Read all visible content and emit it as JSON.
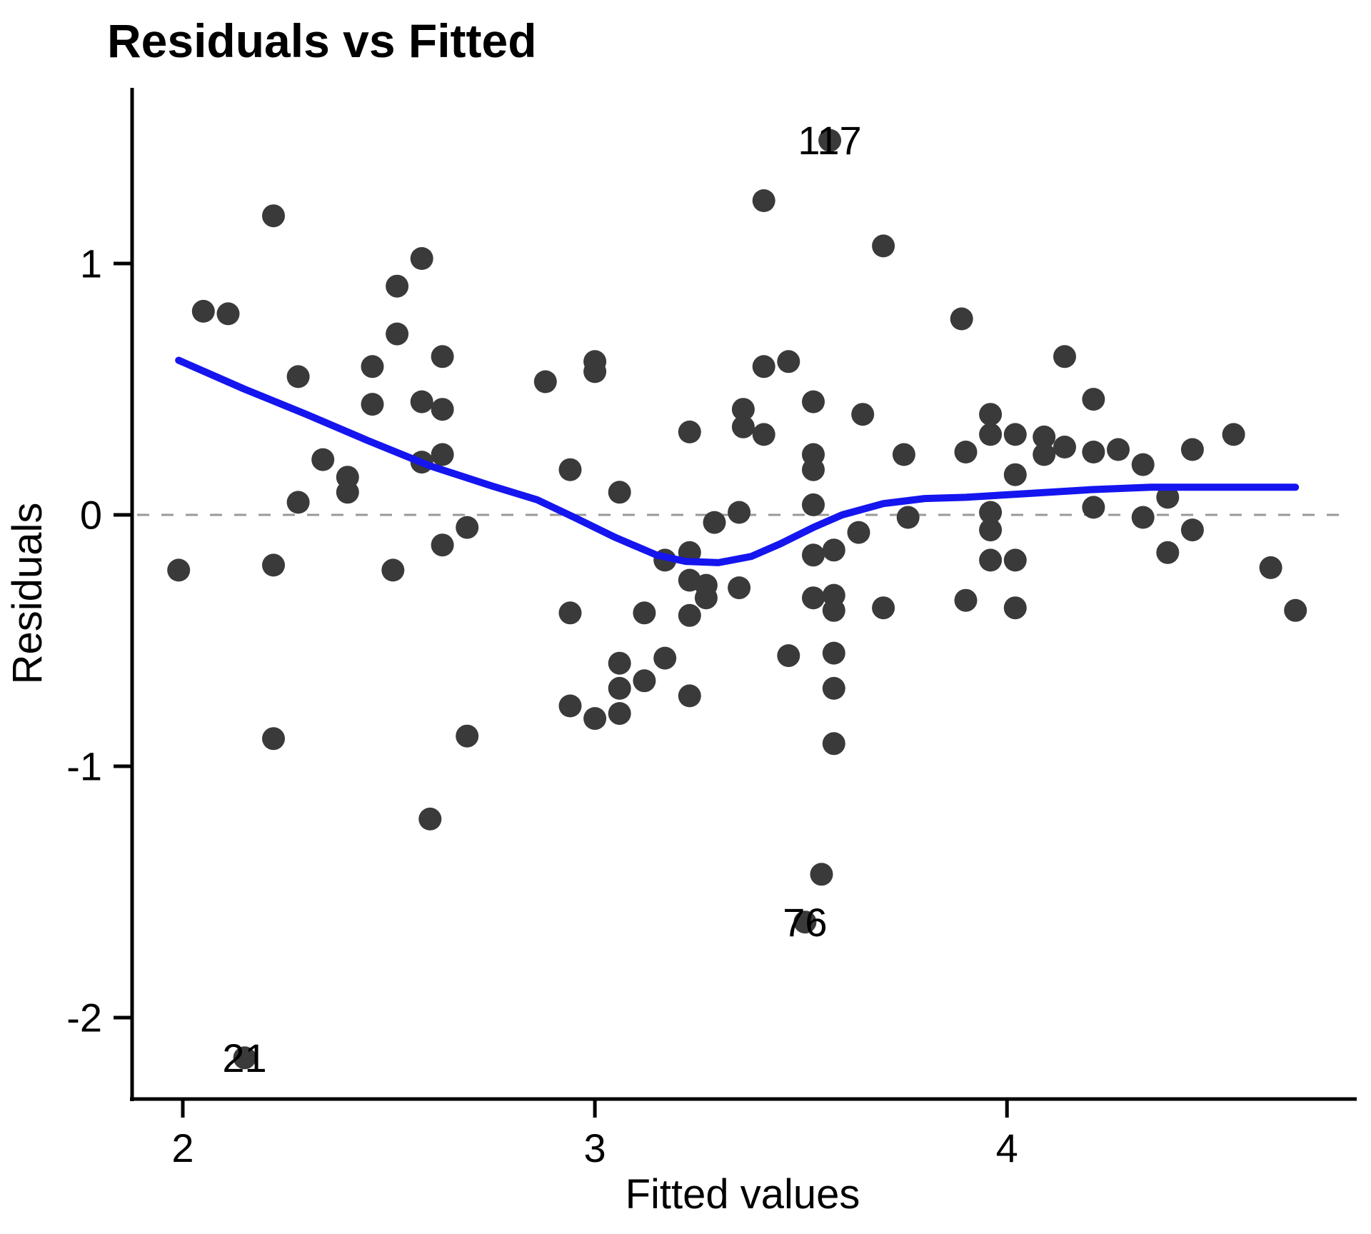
{
  "title": "Residuals vs Fitted",
  "axes": {
    "x": {
      "label": "Fitted values",
      "ticks": [
        2,
        3,
        4
      ],
      "tick_labels": [
        "2",
        "3",
        "4"
      ],
      "range": [
        1.877,
        4.84
      ]
    },
    "y": {
      "label": "Residuals",
      "ticks": [
        1,
        0,
        -1,
        -2
      ],
      "tick_labels": [
        "1",
        "0",
        "-1",
        "-2"
      ],
      "range": [
        -2.324,
        1.699
      ]
    }
  },
  "colors": {
    "point": "#3a3a3a",
    "smooth_line": "#1515ef",
    "zero_line": "#999999",
    "axis": "#000000",
    "text": "#000000"
  },
  "chart_data": {
    "type": "scatter",
    "title": "Residuals vs Fitted",
    "xlabel": "Fitted values",
    "ylabel": "Residuals",
    "xlim": [
      1.877,
      4.84
    ],
    "ylim": [
      -2.324,
      1.699
    ],
    "grid": "off",
    "legend": "none",
    "zero_reference_line": 0,
    "points": [
      [
        2.22,
        1.19
      ],
      [
        2.58,
        1.02
      ],
      [
        2.52,
        0.91
      ],
      [
        2.05,
        0.81
      ],
      [
        2.11,
        0.8
      ],
      [
        2.52,
        0.72
      ],
      [
        2.63,
        0.63
      ],
      [
        2.46,
        0.59
      ],
      [
        2.28,
        0.55
      ],
      [
        2.46,
        0.44
      ],
      [
        2.58,
        0.45
      ],
      [
        2.63,
        0.42
      ],
      [
        3.41,
        1.25
      ],
      [
        3.7,
        1.07
      ],
      [
        3.89,
        0.78
      ],
      [
        3.0,
        0.61
      ],
      [
        3.0,
        0.57
      ],
      [
        2.88,
        0.53
      ],
      [
        3.41,
        0.59
      ],
      [
        3.47,
        0.61
      ],
      [
        3.53,
        0.45
      ],
      [
        3.65,
        0.4
      ],
      [
        3.36,
        0.42
      ],
      [
        3.36,
        0.35
      ],
      [
        3.23,
        0.33
      ],
      [
        3.41,
        0.32
      ],
      [
        4.14,
        0.63
      ],
      [
        4.21,
        0.46
      ],
      [
        2.34,
        0.22
      ],
      [
        2.4,
        0.15
      ],
      [
        2.4,
        0.09
      ],
      [
        2.28,
        0.05
      ],
      [
        2.58,
        0.21
      ],
      [
        2.63,
        0.24
      ],
      [
        2.69,
        -0.05
      ],
      [
        2.63,
        -0.12
      ],
      [
        1.99,
        -0.22
      ],
      [
        2.22,
        -0.2
      ],
      [
        2.51,
        -0.22
      ],
      [
        2.22,
        -0.89
      ],
      [
        2.69,
        -0.88
      ],
      [
        2.94,
        0.18
      ],
      [
        3.06,
        0.09
      ],
      [
        3.53,
        0.24
      ],
      [
        3.53,
        0.18
      ],
      [
        3.29,
        -0.03
      ],
      [
        3.35,
        0.01
      ],
      [
        3.53,
        0.04
      ],
      [
        3.75,
        0.24
      ],
      [
        3.76,
        -0.01
      ],
      [
        3.64,
        -0.07
      ],
      [
        3.58,
        -0.14
      ],
      [
        3.53,
        -0.16
      ],
      [
        3.17,
        -0.18
      ],
      [
        3.23,
        -0.15
      ],
      [
        3.23,
        -0.26
      ],
      [
        3.27,
        -0.28
      ],
      [
        3.27,
        -0.33
      ],
      [
        3.35,
        -0.29
      ],
      [
        3.23,
        -0.4
      ],
      [
        2.94,
        -0.39
      ],
      [
        3.12,
        -0.39
      ],
      [
        3.53,
        -0.33
      ],
      [
        3.58,
        -0.32
      ],
      [
        3.58,
        -0.38
      ],
      [
        3.7,
        -0.37
      ],
      [
        3.47,
        -0.56
      ],
      [
        3.58,
        -0.55
      ],
      [
        3.06,
        -0.59
      ],
      [
        3.06,
        -0.69
      ],
      [
        3.17,
        -0.57
      ],
      [
        3.12,
        -0.66
      ],
      [
        3.23,
        -0.72
      ],
      [
        2.94,
        -0.76
      ],
      [
        3.0,
        -0.81
      ],
      [
        3.06,
        -0.79
      ],
      [
        3.58,
        -0.69
      ],
      [
        3.58,
        -0.91
      ],
      [
        3.96,
        0.4
      ],
      [
        3.96,
        0.32
      ],
      [
        4.02,
        0.32
      ],
      [
        4.09,
        0.31
      ],
      [
        4.09,
        0.24
      ],
      [
        4.14,
        0.27
      ],
      [
        4.21,
        0.25
      ],
      [
        4.27,
        0.26
      ],
      [
        4.33,
        0.2
      ],
      [
        4.45,
        0.26
      ],
      [
        4.02,
        0.16
      ],
      [
        3.9,
        0.25
      ],
      [
        3.96,
        0.01
      ],
      [
        3.96,
        -0.06
      ],
      [
        4.21,
        0.03
      ],
      [
        4.33,
        -0.01
      ],
      [
        4.39,
        0.07
      ],
      [
        4.45,
        -0.06
      ],
      [
        4.39,
        -0.15
      ],
      [
        4.64,
        -0.21
      ],
      [
        3.96,
        -0.18
      ],
      [
        4.02,
        -0.18
      ],
      [
        3.9,
        -0.34
      ],
      [
        4.02,
        -0.37
      ],
      [
        4.7,
        -0.38
      ],
      [
        4.55,
        0.32
      ],
      [
        2.6,
        -1.21
      ],
      [
        3.55,
        -1.43
      ],
      [
        3.57,
        1.49
      ],
      [
        3.51,
        -1.62
      ],
      [
        2.15,
        -2.16
      ]
    ],
    "labeled_points": [
      {
        "label": "117",
        "x": 3.57,
        "y": 1.49
      },
      {
        "label": "76",
        "x": 3.51,
        "y": -1.62
      },
      {
        "label": "21",
        "x": 2.15,
        "y": -2.16
      }
    ],
    "smooth_line": [
      [
        1.99,
        0.615
      ],
      [
        2.15,
        0.5
      ],
      [
        2.3,
        0.4
      ],
      [
        2.45,
        0.295
      ],
      [
        2.6,
        0.195
      ],
      [
        2.75,
        0.115
      ],
      [
        2.86,
        0.06
      ],
      [
        2.95,
        -0.01
      ],
      [
        3.05,
        -0.09
      ],
      [
        3.15,
        -0.16
      ],
      [
        3.22,
        -0.185
      ],
      [
        3.3,
        -0.19
      ],
      [
        3.38,
        -0.165
      ],
      [
        3.45,
        -0.115
      ],
      [
        3.53,
        -0.05
      ],
      [
        3.6,
        0.0
      ],
      [
        3.7,
        0.045
      ],
      [
        3.8,
        0.065
      ],
      [
        3.9,
        0.07
      ],
      [
        4.05,
        0.085
      ],
      [
        4.2,
        0.1
      ],
      [
        4.35,
        0.11
      ],
      [
        4.5,
        0.11
      ],
      [
        4.7,
        0.11
      ]
    ]
  }
}
